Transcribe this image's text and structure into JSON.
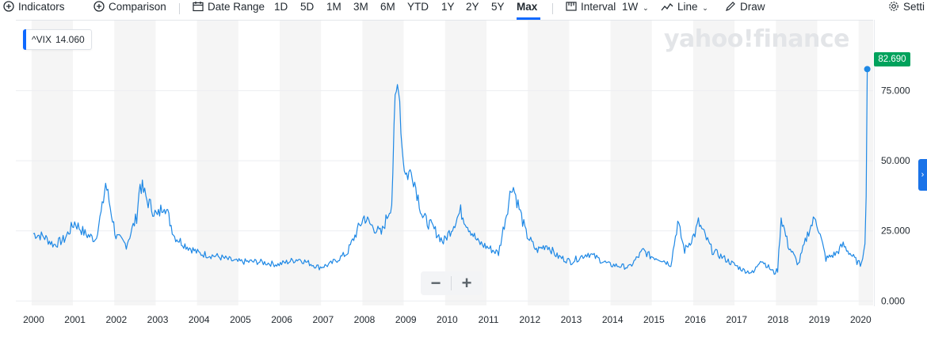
{
  "toolbar": {
    "indicators": "Indicators",
    "comparison": "Comparison",
    "date_range": "Date Range",
    "ranges": [
      "1D",
      "5D",
      "1M",
      "3M",
      "6M",
      "YTD",
      "1Y",
      "2Y",
      "5Y",
      "Max"
    ],
    "selected_range": "Max",
    "interval": "Interval",
    "interval_value": "1W",
    "line": "Line",
    "draw": "Draw",
    "settings": "Setti"
  },
  "symbol_label": {
    "symbol": "^VIX",
    "value": "14.060"
  },
  "watermark": "yahoo!finance",
  "last_price_badge": "82.690",
  "zoom": {
    "minus": "−",
    "plus": "+"
  },
  "colors": {
    "line": "#1e88e5",
    "accent": "#0f69ff",
    "badge_green": "#00a25c",
    "band_gray": "#f5f5f5",
    "grid": "#eceef1"
  },
  "chart_data": {
    "type": "line",
    "series": [
      {
        "name": "^VIX",
        "x": [
          "2000-01",
          "2000-04",
          "2000-07",
          "2000-10",
          "2001-01",
          "2001-04",
          "2001-07",
          "2001-09",
          "2001-10",
          "2002-01",
          "2002-04",
          "2002-07",
          "2002-08",
          "2002-10",
          "2003-01",
          "2003-03",
          "2003-06",
          "2003-09",
          "2004-01",
          "2004-06",
          "2004-12",
          "2005-06",
          "2005-12",
          "2006-06",
          "2006-12",
          "2007-03",
          "2007-08",
          "2007-11",
          "2008-01",
          "2008-03",
          "2008-06",
          "2008-09",
          "2008-10",
          "2008-11",
          "2008-12",
          "2009-01",
          "2009-03",
          "2009-06",
          "2009-09",
          "2009-12",
          "2010-02",
          "2010-05",
          "2010-07",
          "2010-10",
          "2011-01",
          "2011-04",
          "2011-08",
          "2011-10",
          "2011-12",
          "2012-03",
          "2012-06",
          "2012-09",
          "2013-01",
          "2013-06",
          "2013-12",
          "2014-06",
          "2014-10",
          "2014-12",
          "2015-03",
          "2015-06",
          "2015-08",
          "2015-10",
          "2016-01",
          "2016-02",
          "2016-06",
          "2016-11",
          "2017-03",
          "2017-06",
          "2017-08",
          "2017-12",
          "2018-01",
          "2018-02",
          "2018-04",
          "2018-07",
          "2018-10",
          "2018-12",
          "2019-03",
          "2019-06",
          "2019-08",
          "2019-12",
          "2020-01",
          "2020-02",
          "2020-03"
        ],
        "y": [
          24,
          23,
          20,
          22,
          28,
          24,
          22,
          33,
          42,
          23,
          20,
          30,
          42,
          36,
          30,
          35,
          23,
          20,
          17,
          16,
          14,
          14,
          13,
          15,
          12,
          13,
          17,
          25,
          30,
          27,
          24,
          35,
          70,
          80,
          55,
          45,
          46,
          30,
          26,
          21,
          25,
          32,
          27,
          21,
          19,
          17,
          42,
          33,
          24,
          18,
          20,
          16,
          14,
          17,
          13,
          12,
          18,
          16,
          15,
          13,
          28,
          18,
          24,
          28,
          18,
          14,
          11,
          10,
          15,
          10,
          11,
          30,
          20,
          13,
          25,
          30,
          15,
          17,
          20,
          14,
          13,
          18,
          82.69
        ]
      }
    ],
    "x_ticks": [
      "2000",
      "2001",
      "2002",
      "2003",
      "2004",
      "2005",
      "2006",
      "2007",
      "2008",
      "2009",
      "2010",
      "2011",
      "2012",
      "2013",
      "2014",
      "2015",
      "2016",
      "2017",
      "2018",
      "2019",
      "2020"
    ],
    "y_ticks": [
      "0.000",
      "25.000",
      "50.000",
      "75.000"
    ],
    "ylim": [
      -1.6,
      100
    ],
    "xlim": [
      1999.62,
      2020.35
    ],
    "grid": true,
    "title": "",
    "xlabel": "",
    "ylabel": ""
  }
}
